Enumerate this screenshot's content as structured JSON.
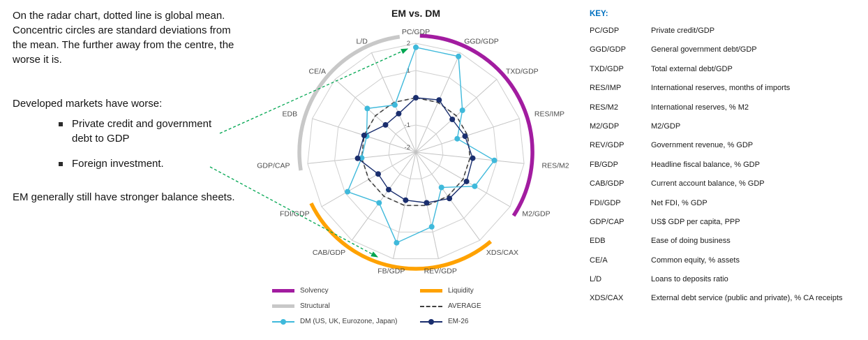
{
  "left_notes": {
    "para1": "On the radar chart, dotted line is global mean. Concentric circles are standard deviations from the mean. The further away from the centre, the worse it is.",
    "para2": "Developed markets have worse:",
    "bullets": [
      "Private credit and government debt to GDP",
      "Foreign investment."
    ],
    "para3": "EM generally still have stronger balance sheets."
  },
  "chart_data": {
    "type": "radar",
    "title": "EM vs. DM",
    "axes": [
      "PC/GDP",
      "GGD/GDP",
      "TXD/GDP",
      "RES/IMP",
      "RES/M2",
      "M2/GDP",
      "XDS/CAX",
      "REV/GDP",
      "FB/GDP",
      "CAB/GDP",
      "FDI/GDP",
      "GDP/CAP",
      "EDB",
      "CE/A",
      "L/D"
    ],
    "scale": {
      "min": -2,
      "max": 2,
      "rings": [
        -1,
        0,
        1,
        2
      ],
      "ticks": [
        {
          "v": 2,
          "label": "2"
        },
        {
          "v": 1,
          "label": "1"
        },
        {
          "v": -1,
          "label": "-1"
        },
        {
          "v": -2,
          "label": "-2"
        }
      ],
      "note": "standard deviations from global mean; centre = -2, outer = 2"
    },
    "series": [
      {
        "name": "DM (US, UK, Eurozone, Japan)",
        "color": "#3FB9DB",
        "marker": true,
        "dashed": false,
        "values": [
          1.85,
          1.85,
          0.3,
          -0.4,
          0.9,
          0.5,
          -0.4,
          0.8,
          1.4,
          0.3,
          0.9,
          0.0,
          -0.1,
          0.4,
          -0.1
        ]
      },
      {
        "name": "EM-26",
        "color": "#1A2E6E",
        "marker": true,
        "dashed": false,
        "values": [
          0.0,
          0.1,
          -0.2,
          -0.1,
          0.1,
          0.15,
          0.1,
          -0.1,
          -0.2,
          -0.3,
          -0.4,
          0.15,
          0.0,
          -0.5,
          -0.45
        ]
      },
      {
        "name": "AVERAGE",
        "color": "#404040",
        "marker": false,
        "dashed": true,
        "values": [
          0,
          0,
          0,
          0,
          0,
          0,
          0,
          0,
          0,
          0,
          0,
          0,
          0,
          0,
          0
        ]
      }
    ],
    "groups": [
      {
        "name": "Solvency",
        "color": "#A21CA0",
        "start_deg": 2,
        "end_deg": 123
      },
      {
        "name": "Liquidity",
        "color": "#FFA200",
        "start_deg": 140,
        "end_deg": 244
      },
      {
        "name": "Structural",
        "color": "#C8C8C8",
        "start_deg": 261,
        "end_deg": 352
      }
    ],
    "legend_position": "bottom",
    "grid": true
  },
  "legend": {
    "rows": [
      [
        {
          "label": "Solvency",
          "swatch": "thick",
          "color": "#A21CA0"
        },
        {
          "label": "Liquidity",
          "swatch": "thick",
          "color": "#FFA200"
        }
      ],
      [
        {
          "label": "Structural",
          "swatch": "thick",
          "color": "#C8C8C8"
        },
        {
          "label": "AVERAGE",
          "swatch": "dashed",
          "color": "#404040"
        }
      ],
      [
        {
          "label": "DM (US, UK, Eurozone, Japan)",
          "swatch": "line-dot",
          "color": "#3FB9DB"
        },
        {
          "label": "EM-26",
          "swatch": "line-dot",
          "color": "#1A2E6E"
        }
      ]
    ]
  },
  "key_panel": {
    "title": "KEY:",
    "title_color": "#0070C0",
    "entries": [
      {
        "code": "PC/GDP",
        "desc": "Private credit/GDP"
      },
      {
        "code": "GGD/GDP",
        "desc": "General government debt/GDP"
      },
      {
        "code": "TXD/GDP",
        "desc": "Total external debt/GDP"
      },
      {
        "code": "RES/IMP",
        "desc": "International reserves, months of imports"
      },
      {
        "code": "RES/M2",
        "desc": "International reserves, % M2"
      },
      {
        "code": "M2/GDP",
        "desc": "M2/GDP"
      },
      {
        "code": "REV/GDP",
        "desc": "Government revenue, % GDP"
      },
      {
        "code": "FB/GDP",
        "desc": "Headline fiscal balance, % GDP"
      },
      {
        "code": "CAB/GDP",
        "desc": "Current account balance, % GDP"
      },
      {
        "code": "FDI/GDP",
        "desc": "Net FDI, % GDP"
      },
      {
        "code": "GDP/CAP",
        "desc": "US$ GDP per capita, PPP"
      },
      {
        "code": "EDB",
        "desc": "Ease of doing business"
      },
      {
        "code": "CE/A",
        "desc": "Common equity, % assets"
      },
      {
        "code": "L/D",
        "desc": "Loans to deposits ratio"
      },
      {
        "code": "XDS/CAX",
        "desc": "External debt service (public and private), % CA receipts"
      }
    ]
  },
  "annotations": {
    "color": "#00A651"
  }
}
